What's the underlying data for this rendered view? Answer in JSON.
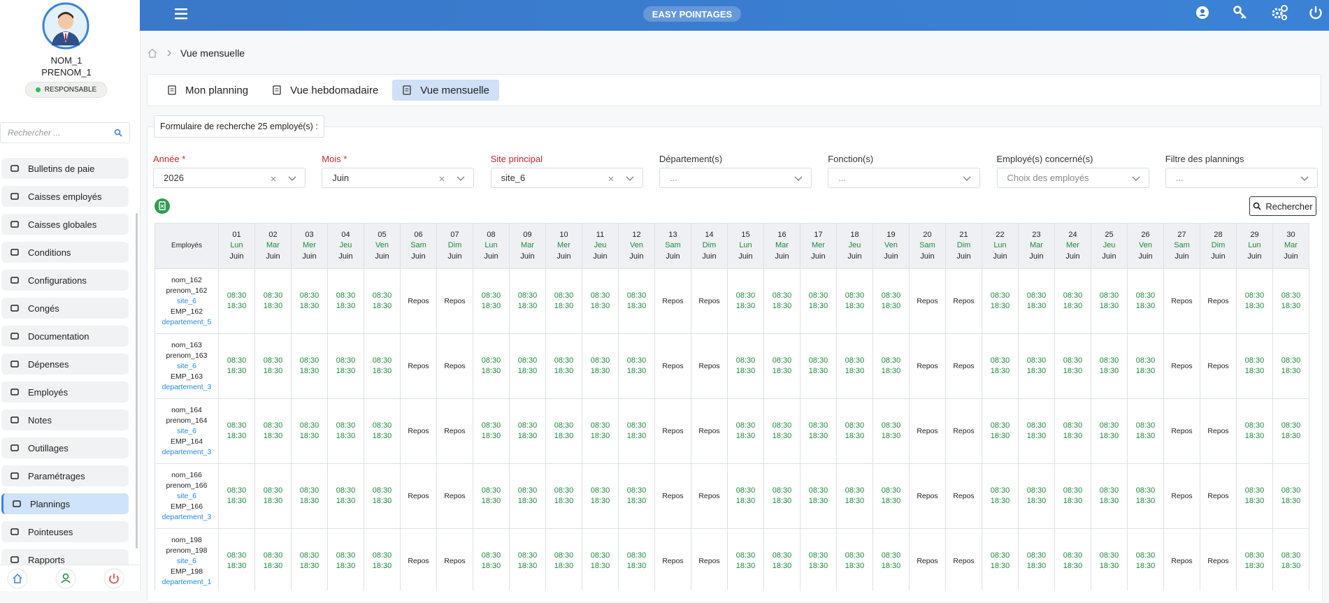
{
  "sidebar": {
    "user": {
      "last_name": "NOM_1",
      "first_name": "PRENOM_1",
      "role": "RESPONSABLE"
    },
    "search_placeholder": "Rechercher ...",
    "menu": [
      "Bulletins de paie",
      "Caisses employés",
      "Caisses globales",
      "Conditions",
      "Configurations",
      "Congés",
      "Documentation",
      "Dépenses",
      "Employés",
      "Notes",
      "Outillages",
      "Paramétrages",
      "Plannings",
      "Pointeuses",
      "Rapports"
    ],
    "active_menu": 12
  },
  "header": {
    "title": "EASY POINTAGES"
  },
  "breadcrumb": [
    "Vue mensuelle"
  ],
  "tabs": {
    "items": [
      "Mon planning",
      "Vue hebdomadaire",
      "Vue mensuelle"
    ],
    "active": 2
  },
  "search_form": {
    "legend": "Formulaire de recherche 25 employé(s) :",
    "fields": [
      {
        "label": "Année *",
        "value": "2026",
        "required": true,
        "clearable": true
      },
      {
        "label": "Mois *",
        "value": "Juin",
        "required": true,
        "clearable": true
      },
      {
        "label": "Site principal",
        "value": "site_6",
        "required": true,
        "clearable": true
      },
      {
        "label": "Département(s)",
        "value": "...",
        "required": false,
        "clearable": false
      },
      {
        "label": "Fonction(s)",
        "value": "...",
        "required": false,
        "clearable": false
      },
      {
        "label": "Employé(s) concerné(s)",
        "value": "Choix des employés",
        "required": false,
        "clearable": false
      },
      {
        "label": "Filtre des plannings",
        "value": "...",
        "required": false,
        "clearable": false
      }
    ],
    "button": "Rechercher"
  },
  "table": {
    "employee_header": "Employés",
    "days": [
      [
        "01",
        "Lun",
        "Juin"
      ],
      [
        "02",
        "Mar",
        "Juin"
      ],
      [
        "03",
        "Mer",
        "Juin"
      ],
      [
        "04",
        "Jeu",
        "Juin"
      ],
      [
        "05",
        "Ven",
        "Juin"
      ],
      [
        "06",
        "Sam",
        "Juin"
      ],
      [
        "07",
        "Dim",
        "Juin"
      ],
      [
        "08",
        "Lun",
        "Juin"
      ],
      [
        "09",
        "Mar",
        "Juin"
      ],
      [
        "10",
        "Mer",
        "Juin"
      ],
      [
        "11",
        "Jeu",
        "Juin"
      ],
      [
        "12",
        "Ven",
        "Juin"
      ],
      [
        "13",
        "Sam",
        "Juin"
      ],
      [
        "14",
        "Dim",
        "Juin"
      ],
      [
        "15",
        "Lun",
        "Juin"
      ],
      [
        "16",
        "Mar",
        "Juin"
      ],
      [
        "17",
        "Mer",
        "Juin"
      ],
      [
        "18",
        "Jeu",
        "Juin"
      ],
      [
        "19",
        "Ven",
        "Juin"
      ],
      [
        "20",
        "Sam",
        "Juin"
      ],
      [
        "21",
        "Dim",
        "Juin"
      ],
      [
        "22",
        "Lun",
        "Juin"
      ],
      [
        "23",
        "Mar",
        "Juin"
      ],
      [
        "24",
        "Mer",
        "Juin"
      ],
      [
        "25",
        "Jeu",
        "Juin"
      ],
      [
        "26",
        "Ven",
        "Juin"
      ],
      [
        "27",
        "Sam",
        "Juin"
      ],
      [
        "28",
        "Dim",
        "Juin"
      ],
      [
        "29",
        "Lun",
        "Juin"
      ],
      [
        "30",
        "Mar",
        "Juin"
      ]
    ],
    "rows": [
      {
        "employee": [
          "nom_162",
          "prenom_162",
          "site_6",
          "EMP_162",
          "departement_5"
        ],
        "cells": [
          [
            "08:30",
            "18:30"
          ],
          [
            "08:30",
            "18:30"
          ],
          [
            "08:30",
            "18:30"
          ],
          [
            "08:30",
            "18:30"
          ],
          [
            "08:30",
            "18:30"
          ],
          [
            "Repos"
          ],
          [
            "Repos"
          ],
          [
            "08:30",
            "18:30"
          ],
          [
            "08:30",
            "18:30"
          ],
          [
            "08:30",
            "18:30"
          ],
          [
            "08:30",
            "18:30"
          ],
          [
            "08:30",
            "18:30"
          ],
          [
            "Repos"
          ],
          [
            "Repos"
          ],
          [
            "08:30",
            "18:30"
          ],
          [
            "08:30",
            "18:30"
          ],
          [
            "08:30",
            "18:30"
          ],
          [
            "08:30",
            "18:30"
          ],
          [
            "08:30",
            "18:30"
          ],
          [
            "Repos"
          ],
          [
            "Repos"
          ],
          [
            "08:30",
            "18:30"
          ],
          [
            "08:30",
            "18:30"
          ],
          [
            "08:30",
            "18:30"
          ],
          [
            "08:30",
            "18:30"
          ],
          [
            "08:30",
            "18:30"
          ],
          [
            "Repos"
          ],
          [
            "Repos"
          ],
          [
            "08:30",
            "18:30"
          ],
          [
            "08:30",
            "18:30"
          ]
        ]
      },
      {
        "employee": [
          "nom_163",
          "prenom_163",
          "site_6",
          "EMP_163",
          "departement_3"
        ],
        "cells": [
          [
            "08:30",
            "18:30"
          ],
          [
            "08:30",
            "18:30"
          ],
          [
            "08:30",
            "18:30"
          ],
          [
            "08:30",
            "18:30"
          ],
          [
            "08:30",
            "18:30"
          ],
          [
            "Repos"
          ],
          [
            "Repos"
          ],
          [
            "08:30",
            "18:30"
          ],
          [
            "08:30",
            "18:30"
          ],
          [
            "08:30",
            "18:30"
          ],
          [
            "08:30",
            "18:30"
          ],
          [
            "08:30",
            "18:30"
          ],
          [
            "Repos"
          ],
          [
            "Repos"
          ],
          [
            "08:30",
            "18:30"
          ],
          [
            "08:30",
            "18:30"
          ],
          [
            "08:30",
            "18:30"
          ],
          [
            "08:30",
            "18:30"
          ],
          [
            "08:30",
            "18:30"
          ],
          [
            "Repos"
          ],
          [
            "Repos"
          ],
          [
            "08:30",
            "18:30"
          ],
          [
            "08:30",
            "18:30"
          ],
          [
            "08:30",
            "18:30"
          ],
          [
            "08:30",
            "18:30"
          ],
          [
            "08:30",
            "18:30"
          ],
          [
            "Repos"
          ],
          [
            "Repos"
          ],
          [
            "08:30",
            "18:30"
          ],
          [
            "08:30",
            "18:30"
          ]
        ]
      },
      {
        "employee": [
          "nom_164",
          "prenom_164",
          "site_6",
          "EMP_164",
          "departement_3"
        ],
        "cells": [
          [
            "08:30",
            "18:30"
          ],
          [
            "08:30",
            "18:30"
          ],
          [
            "08:30",
            "18:30"
          ],
          [
            "08:30",
            "18:30"
          ],
          [
            "08:30",
            "18:30"
          ],
          [
            "Repos"
          ],
          [
            "Repos"
          ],
          [
            "08:30",
            "18:30"
          ],
          [
            "08:30",
            "18:30"
          ],
          [
            "08:30",
            "18:30"
          ],
          [
            "08:30",
            "18:30"
          ],
          [
            "08:30",
            "18:30"
          ],
          [
            "Repos"
          ],
          [
            "Repos"
          ],
          [
            "08:30",
            "18:30"
          ],
          [
            "08:30",
            "18:30"
          ],
          [
            "08:30",
            "18:30"
          ],
          [
            "08:30",
            "18:30"
          ],
          [
            "08:30",
            "18:30"
          ],
          [
            "Repos"
          ],
          [
            "Repos"
          ],
          [
            "08:30",
            "18:30"
          ],
          [
            "08:30",
            "18:30"
          ],
          [
            "08:30",
            "18:30"
          ],
          [
            "08:30",
            "18:30"
          ],
          [
            "08:30",
            "18:30"
          ],
          [
            "Repos"
          ],
          [
            "Repos"
          ],
          [
            "08:30",
            "18:30"
          ],
          [
            "08:30",
            "18:30"
          ]
        ]
      },
      {
        "employee": [
          "nom_166",
          "prenom_166",
          "site_6",
          "EMP_166",
          "departement_3"
        ],
        "cells": [
          [
            "08:30",
            "18:30"
          ],
          [
            "08:30",
            "18:30"
          ],
          [
            "08:30",
            "18:30"
          ],
          [
            "08:30",
            "18:30"
          ],
          [
            "08:30",
            "18:30"
          ],
          [
            "Repos"
          ],
          [
            "Repos"
          ],
          [
            "08:30",
            "18:30"
          ],
          [
            "08:30",
            "18:30"
          ],
          [
            "08:30",
            "18:30"
          ],
          [
            "08:30",
            "18:30"
          ],
          [
            "08:30",
            "18:30"
          ],
          [
            "Repos"
          ],
          [
            "Repos"
          ],
          [
            "08:30",
            "18:30"
          ],
          [
            "08:30",
            "18:30"
          ],
          [
            "08:30",
            "18:30"
          ],
          [
            "08:30",
            "18:30"
          ],
          [
            "08:30",
            "18:30"
          ],
          [
            "Repos"
          ],
          [
            "Repos"
          ],
          [
            "08:30",
            "18:30"
          ],
          [
            "08:30",
            "18:30"
          ],
          [
            "08:30",
            "18:30"
          ],
          [
            "08:30",
            "18:30"
          ],
          [
            "08:30",
            "18:30"
          ],
          [
            "Repos"
          ],
          [
            "Repos"
          ],
          [
            "08:30",
            "18:30"
          ],
          [
            "08:30",
            "18:30"
          ]
        ]
      },
      {
        "employee": [
          "nom_198",
          "prenom_198",
          "site_6",
          "EMP_198",
          "departement_1"
        ],
        "cells": [
          [
            "08:30",
            "18:30"
          ],
          [
            "08:30",
            "18:30"
          ],
          [
            "08:30",
            "18:30"
          ],
          [
            "08:30",
            "18:30"
          ],
          [
            "08:30",
            "18:30"
          ],
          [
            "Repos"
          ],
          [
            "Repos"
          ],
          [
            "08:30",
            "18:30"
          ],
          [
            "08:30",
            "18:30"
          ],
          [
            "08:30",
            "18:30"
          ],
          [
            "08:30",
            "18:30"
          ],
          [
            "08:30",
            "18:30"
          ],
          [
            "Repos"
          ],
          [
            "Repos"
          ],
          [
            "08:30",
            "18:30"
          ],
          [
            "08:30",
            "18:30"
          ],
          [
            "08:30",
            "18:30"
          ],
          [
            "08:30",
            "18:30"
          ],
          [
            "08:30",
            "18:30"
          ],
          [
            "Repos"
          ],
          [
            "Repos"
          ],
          [
            "08:30",
            "18:30"
          ],
          [
            "08:30",
            "18:30"
          ],
          [
            "08:30",
            "18:30"
          ],
          [
            "08:30",
            "18:30"
          ],
          [
            "08:30",
            "18:30"
          ],
          [
            "Repos"
          ],
          [
            "Repos"
          ],
          [
            "08:30",
            "18:30"
          ],
          [
            "08:30",
            "18:30"
          ]
        ]
      }
    ]
  }
}
